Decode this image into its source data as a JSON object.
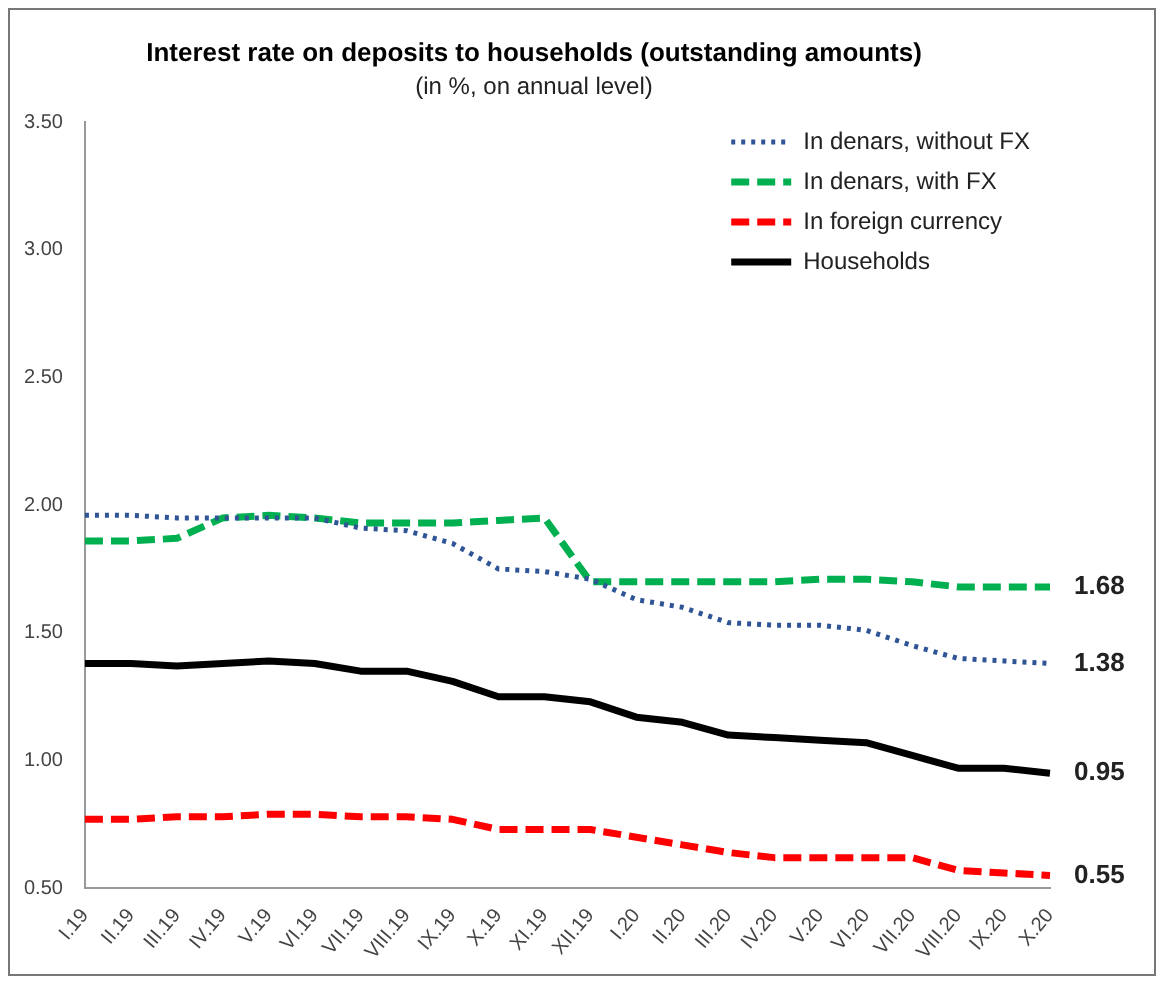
{
  "chart_data": {
    "type": "line",
    "title": "Interest rate on deposits to households (outstanding amounts)",
    "subtitle": "(in %, on annual level)",
    "categories": [
      "I.19",
      "II.19",
      "III.19",
      "IV.19",
      "V.19",
      "VI.19",
      "VII.19",
      "VIII.19",
      "IX.19",
      "X.19",
      "XI.19",
      "XII.19",
      "I.20",
      "II.20",
      "III.20",
      "IV.20",
      "V.20",
      "VI.20",
      "VII.20",
      "VIII.20",
      "IX.20",
      "X.20"
    ],
    "series": [
      {
        "name": "In denars, without FX",
        "color": "#2f5597",
        "line_style": "dotted",
        "values": [
          1.96,
          1.96,
          1.95,
          1.95,
          1.95,
          1.95,
          1.91,
          1.9,
          1.85,
          1.75,
          1.74,
          1.71,
          1.63,
          1.6,
          1.54,
          1.53,
          1.53,
          1.51,
          1.45,
          1.4,
          1.39,
          1.38
        ],
        "value_labels": [
          null,
          null,
          null,
          null,
          null,
          null,
          null,
          null,
          null,
          null,
          null,
          null,
          null,
          null,
          null,
          null,
          null,
          null,
          null,
          null,
          null,
          "1.38"
        ]
      },
      {
        "name": "In denars, with FX",
        "color": "#00b050",
        "line_style": "dashed",
        "values": [
          1.86,
          1.86,
          1.87,
          1.95,
          1.96,
          1.95,
          1.93,
          1.93,
          1.93,
          1.94,
          1.95,
          1.7,
          1.7,
          1.7,
          1.7,
          1.7,
          1.71,
          1.71,
          1.7,
          1.68,
          1.68,
          1.68
        ],
        "value_labels": [
          null,
          null,
          null,
          null,
          null,
          null,
          null,
          null,
          null,
          null,
          null,
          null,
          null,
          null,
          null,
          null,
          null,
          null,
          null,
          null,
          null,
          "1.68"
        ]
      },
      {
        "name": "In foreign currency",
        "color": "#ff0000",
        "line_style": "dashed",
        "values": [
          0.77,
          0.77,
          0.78,
          0.78,
          0.79,
          0.79,
          0.78,
          0.78,
          0.77,
          0.73,
          0.73,
          0.73,
          0.7,
          0.67,
          0.64,
          0.62,
          0.62,
          0.62,
          0.62,
          0.57,
          0.56,
          0.55
        ],
        "value_labels": [
          null,
          null,
          null,
          null,
          null,
          null,
          null,
          null,
          null,
          null,
          null,
          null,
          null,
          null,
          null,
          null,
          null,
          null,
          null,
          null,
          null,
          "0.55"
        ]
      },
      {
        "name": "Households",
        "color": "#000000",
        "line_style": "solid",
        "values": [
          1.38,
          1.38,
          1.37,
          1.38,
          1.39,
          1.38,
          1.35,
          1.35,
          1.31,
          1.25,
          1.25,
          1.23,
          1.17,
          1.15,
          1.1,
          1.09,
          1.08,
          1.07,
          1.02,
          0.97,
          0.97,
          0.95
        ],
        "value_labels": [
          null,
          null,
          null,
          null,
          null,
          null,
          null,
          null,
          null,
          null,
          null,
          null,
          null,
          null,
          null,
          null,
          null,
          null,
          null,
          null,
          null,
          "0.95"
        ]
      }
    ],
    "ylim": [
      0.5,
      3.5
    ],
    "yticks": [
      {
        "value": 0.5,
        "label": "0.50"
      },
      {
        "value": 1,
        "label": "1.00"
      },
      {
        "value": 1.5,
        "label": "1.50"
      },
      {
        "value": 2,
        "label": "2.00"
      },
      {
        "value": 2.5,
        "label": "2.50"
      },
      {
        "value": 3,
        "label": "3.00"
      },
      {
        "value": 3.5,
        "label": "3.50"
      }
    ],
    "grid": false,
    "legend": "top right",
    "marker": "none"
  }
}
